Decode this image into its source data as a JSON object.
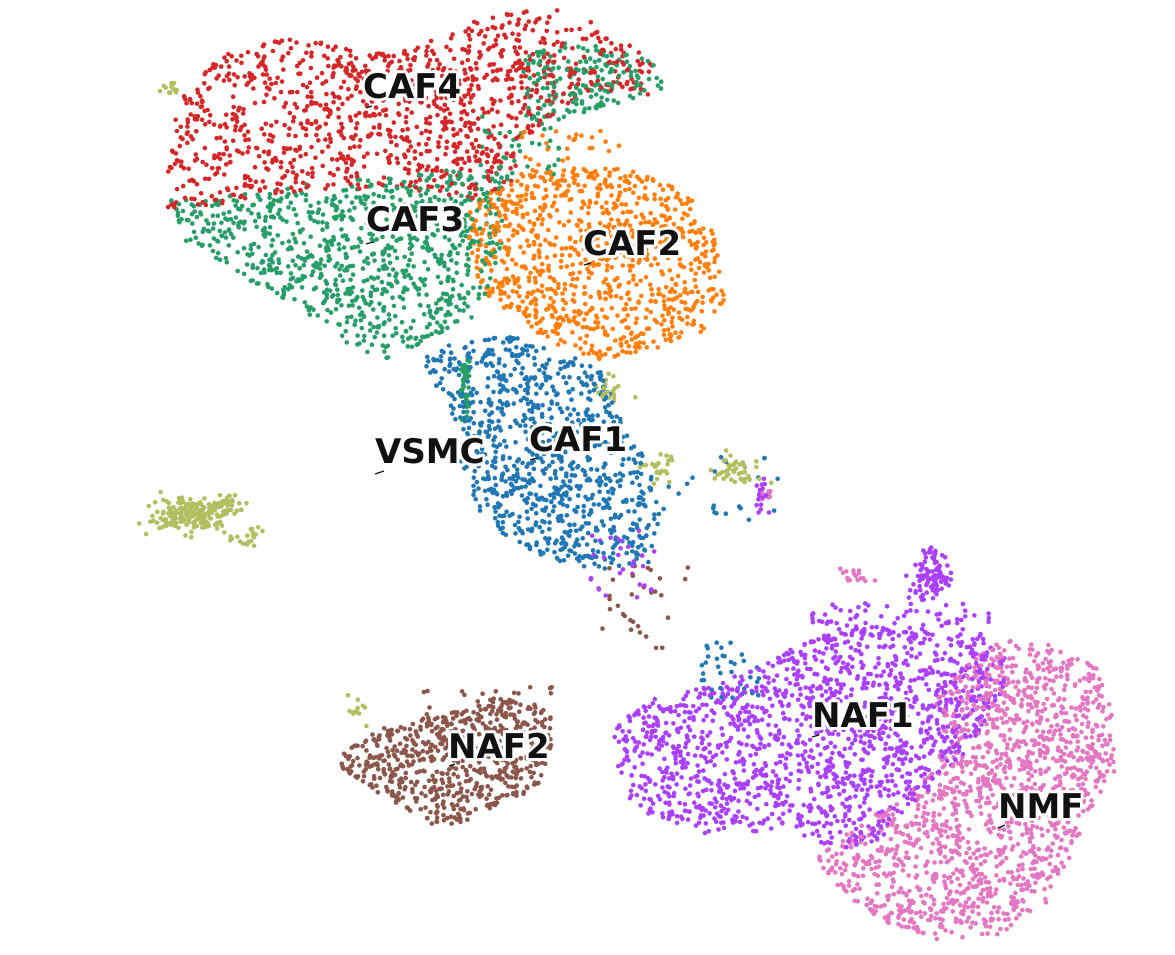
{
  "chart_data": {
    "type": "scatter",
    "title": "",
    "xlabel": "",
    "ylabel": "",
    "axes_visible": false,
    "grid": false,
    "legend": "none",
    "labels_on_plot": true,
    "clusters": [
      {
        "name": "CAF4",
        "color": "#d62728",
        "center": [
          0.3,
          0.89
        ]
      },
      {
        "name": "CAF3",
        "color": "#279e68",
        "center": [
          0.3,
          0.77
        ]
      },
      {
        "name": "CAF2",
        "color": "#ff7f0e",
        "center": [
          0.49,
          0.74
        ]
      },
      {
        "name": "CAF1",
        "color": "#1f77b4",
        "center": [
          0.45,
          0.53
        ]
      },
      {
        "name": "VSMC",
        "color": "#b5bd61",
        "center": [
          0.07,
          0.47
        ]
      },
      {
        "name": "NAF1",
        "color": "#aa40fc",
        "center": [
          0.7,
          0.23
        ]
      },
      {
        "name": "NAF2",
        "color": "#8c564b",
        "center": [
          0.32,
          0.21
        ]
      },
      {
        "name": "NMF",
        "color": "#e377c2",
        "center": [
          0.87,
          0.16
        ]
      }
    ]
  }
}
